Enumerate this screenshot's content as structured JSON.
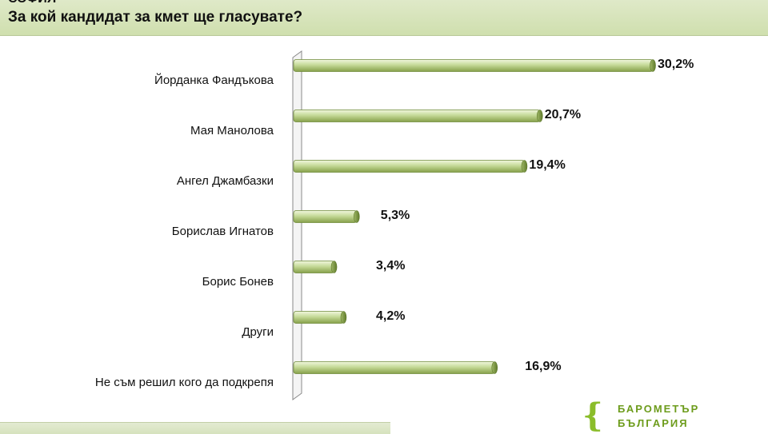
{
  "header": {
    "top_text": "СОФИЯ",
    "title": "За кой кандидат за кмет ще гласувате?"
  },
  "logo": {
    "line1": "БАРОМЕТЪР",
    "line2": "БЪЛГАРИЯ"
  },
  "colors": {
    "bar_light": "#e9f2d2",
    "bar_mid": "#b6cf82",
    "bar_dark": "#7f9a45",
    "header_bg": "#d6e4b8",
    "axis": "#8a8a8a"
  },
  "chart_data": {
    "type": "bar",
    "orientation": "horizontal",
    "title": "За кой кандидат за кмет ще гласувате?",
    "categories": [
      "Йорданка Фандъкова",
      "Мая Манолова",
      "Ангел Джамбазки",
      "Борислав Игнатов",
      "Борис Бонев",
      "Други",
      "Не съм решил кого да подкрепя"
    ],
    "values": [
      30.2,
      20.7,
      19.4,
      5.3,
      3.4,
      4.2,
      16.9
    ],
    "value_labels": [
      "30,2%",
      "20,7%",
      "19,4%",
      "5,3%",
      "3,4%",
      "4,2%",
      "16,9%"
    ],
    "xlim": [
      0,
      32
    ],
    "grid": false,
    "legend": "none"
  }
}
